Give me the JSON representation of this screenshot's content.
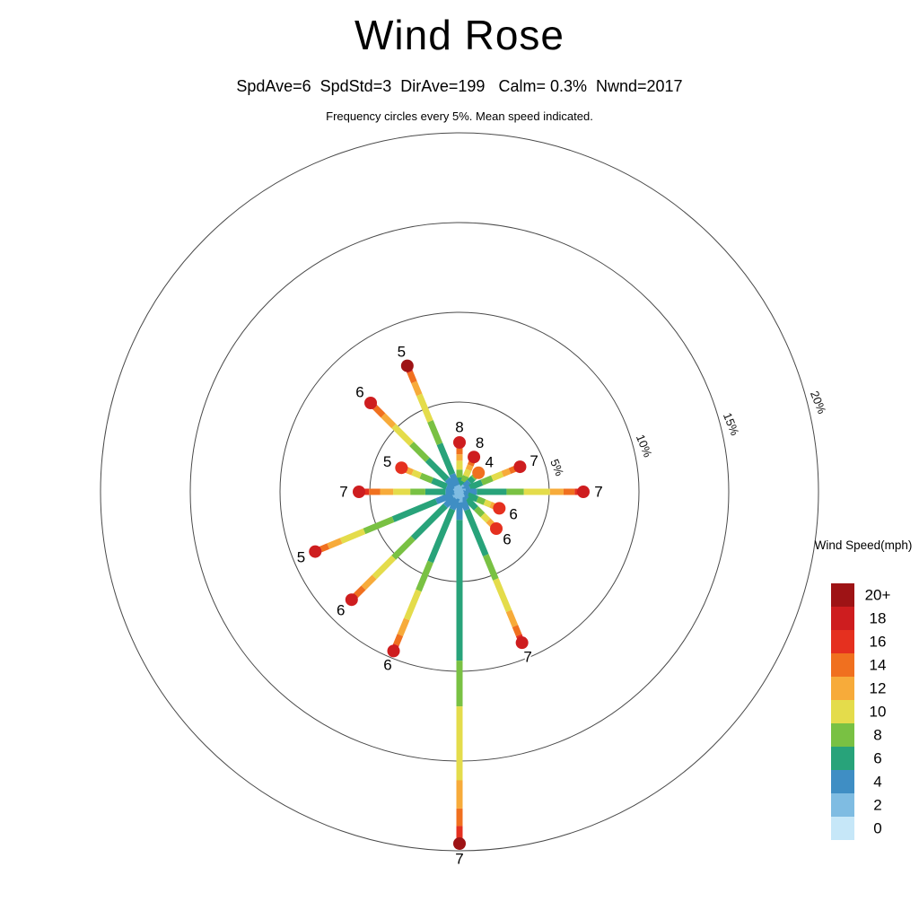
{
  "page": {
    "title": "Wind Rose",
    "stats_line": "SpdAve=6  SpdStd=3  DirAve=199   Calm= 0.3%  Nwnd=2017",
    "subtitle": "Frequency circles every 5%. Mean speed indicated."
  },
  "legend": {
    "title": "Wind Speed(mph)",
    "entries_top_to_bottom": [
      "20+",
      "18",
      "16",
      "14",
      "12",
      "10",
      "8",
      "6",
      "4",
      "2",
      "0"
    ]
  },
  "chart_data": {
    "type": "windrose-polar",
    "title": "Wind Rose",
    "stats": {
      "SpdAve": 6,
      "SpdStd": 3,
      "DirAve": 199,
      "Calm_pct": 0.3,
      "Nwnd": 2017
    },
    "frequency_circle_interval_pct": 5,
    "frequency_circles_pct": [
      5,
      10,
      15,
      20
    ],
    "circle_labels": [
      "5%",
      "10%",
      "15%",
      "20%"
    ],
    "circle_label_angle_deg": 76,
    "speed_bins_mph": [
      "0",
      "2",
      "4",
      "6",
      "8",
      "10",
      "12",
      "14",
      "16",
      "18",
      "20+"
    ],
    "speed_colors": [
      "#c6e7f8",
      "#7fbce2",
      "#3f8ec4",
      "#28a37a",
      "#79c143",
      "#e4dc4b",
      "#f7ab3a",
      "#f0701f",
      "#e5301f",
      "#ce1d1f",
      "#9e1315"
    ],
    "directions": [
      {
        "dir": "N",
        "angle_deg": 0,
        "frequency_pct": 2.75,
        "mean_speed": 8,
        "tip_color": 9,
        "segments": [
          [
            1,
            0.05
          ],
          [
            2,
            0.1
          ],
          [
            3,
            0.14
          ],
          [
            4,
            0.16
          ],
          [
            5,
            0.18
          ],
          [
            6,
            0.13
          ],
          [
            7,
            0.12
          ],
          [
            8,
            0.12
          ]
        ]
      },
      {
        "dir": "NNE",
        "angle_deg": 22.5,
        "frequency_pct": 2.1,
        "mean_speed": 8,
        "tip_color": 9,
        "segments": [
          [
            1,
            0.05
          ],
          [
            2,
            0.1
          ],
          [
            3,
            0.14
          ],
          [
            4,
            0.16
          ],
          [
            5,
            0.18
          ],
          [
            6,
            0.13
          ],
          [
            7,
            0.12
          ],
          [
            8,
            0.12
          ]
        ]
      },
      {
        "dir": "NE",
        "angle_deg": 45,
        "frequency_pct": 1.5,
        "mean_speed": 4,
        "tip_color": 7,
        "segments": [
          [
            0,
            0.1
          ],
          [
            1,
            0.18
          ],
          [
            2,
            0.24
          ],
          [
            3,
            0.2
          ],
          [
            4,
            0.12
          ],
          [
            5,
            0.08
          ],
          [
            6,
            0.08
          ]
        ]
      },
      {
        "dir": "ENE",
        "angle_deg": 67.5,
        "frequency_pct": 3.65,
        "mean_speed": 7,
        "tip_color": 9,
        "segments": [
          [
            1,
            0.06
          ],
          [
            2,
            0.11
          ],
          [
            3,
            0.2
          ],
          [
            4,
            0.17
          ],
          [
            5,
            0.17
          ],
          [
            6,
            0.12
          ],
          [
            7,
            0.1
          ],
          [
            8,
            0.07
          ]
        ]
      },
      {
        "dir": "E",
        "angle_deg": 90,
        "frequency_pct": 6.9,
        "mean_speed": 7,
        "tip_color": 9,
        "segments": [
          [
            1,
            0.05
          ],
          [
            2,
            0.09
          ],
          [
            3,
            0.24
          ],
          [
            4,
            0.14
          ],
          [
            5,
            0.21
          ],
          [
            6,
            0.11
          ],
          [
            7,
            0.09
          ],
          [
            8,
            0.07
          ]
        ]
      },
      {
        "dir": "ESE",
        "angle_deg": 112.5,
        "frequency_pct": 2.4,
        "mean_speed": 6,
        "tip_color": 8,
        "segments": [
          [
            1,
            0.07
          ],
          [
            2,
            0.14
          ],
          [
            3,
            0.24
          ],
          [
            4,
            0.18
          ],
          [
            5,
            0.15
          ],
          [
            6,
            0.11
          ],
          [
            7,
            0.11
          ]
        ]
      },
      {
        "dir": "SE",
        "angle_deg": 135,
        "frequency_pct": 2.9,
        "mean_speed": 6,
        "tip_color": 8,
        "segments": [
          [
            1,
            0.07
          ],
          [
            2,
            0.13
          ],
          [
            3,
            0.25
          ],
          [
            4,
            0.18
          ],
          [
            5,
            0.15
          ],
          [
            6,
            0.11
          ],
          [
            7,
            0.11
          ]
        ]
      },
      {
        "dir": "SSE",
        "angle_deg": 157.5,
        "frequency_pct": 9.1,
        "mean_speed": 7,
        "tip_color": 9,
        "segments": [
          [
            1,
            0.04
          ],
          [
            2,
            0.08
          ],
          [
            3,
            0.3
          ],
          [
            4,
            0.16
          ],
          [
            5,
            0.21
          ],
          [
            6,
            0.1
          ],
          [
            7,
            0.06
          ],
          [
            8,
            0.05
          ]
        ]
      },
      {
        "dir": "S",
        "angle_deg": 180,
        "frequency_pct": 19.6,
        "mean_speed": 7,
        "tip_color": 10,
        "segments": [
          [
            1,
            0.03
          ],
          [
            2,
            0.05
          ],
          [
            3,
            0.4
          ],
          [
            4,
            0.13
          ],
          [
            5,
            0.21
          ],
          [
            6,
            0.08
          ],
          [
            7,
            0.05
          ],
          [
            8,
            0.05
          ]
        ]
      },
      {
        "dir": "SSW",
        "angle_deg": 202.5,
        "frequency_pct": 9.6,
        "mean_speed": 6,
        "tip_color": 9,
        "segments": [
          [
            1,
            0.04
          ],
          [
            2,
            0.07
          ],
          [
            3,
            0.33
          ],
          [
            4,
            0.18
          ],
          [
            5,
            0.18
          ],
          [
            6,
            0.1
          ],
          [
            7,
            0.06
          ],
          [
            8,
            0.04
          ]
        ]
      },
      {
        "dir": "SW",
        "angle_deg": 225,
        "frequency_pct": 8.5,
        "mean_speed": 6,
        "tip_color": 9,
        "segments": [
          [
            1,
            0.05
          ],
          [
            2,
            0.08
          ],
          [
            3,
            0.3
          ],
          [
            4,
            0.18
          ],
          [
            5,
            0.18
          ],
          [
            6,
            0.1
          ],
          [
            7,
            0.07
          ],
          [
            8,
            0.04
          ]
        ]
      },
      {
        "dir": "WSW",
        "angle_deg": 247.5,
        "frequency_pct": 8.7,
        "mean_speed": 5,
        "tip_color": 9,
        "segments": [
          [
            1,
            0.05
          ],
          [
            2,
            0.11
          ],
          [
            3,
            0.3
          ],
          [
            4,
            0.2
          ],
          [
            5,
            0.16
          ],
          [
            6,
            0.09
          ],
          [
            7,
            0.05
          ],
          [
            8,
            0.04
          ]
        ]
      },
      {
        "dir": "W",
        "angle_deg": 270,
        "frequency_pct": 5.6,
        "mean_speed": 7,
        "tip_color": 9,
        "segments": [
          [
            1,
            0.05
          ],
          [
            2,
            0.09
          ],
          [
            3,
            0.2
          ],
          [
            4,
            0.15
          ],
          [
            5,
            0.17
          ],
          [
            6,
            0.13
          ],
          [
            7,
            0.11
          ],
          [
            8,
            0.1
          ]
        ]
      },
      {
        "dir": "WNW",
        "angle_deg": 292.5,
        "frequency_pct": 3.5,
        "mean_speed": 5,
        "tip_color": 8,
        "segments": [
          [
            1,
            0.08
          ],
          [
            2,
            0.14
          ],
          [
            3,
            0.25
          ],
          [
            4,
            0.2
          ],
          [
            5,
            0.14
          ],
          [
            6,
            0.09
          ],
          [
            7,
            0.1
          ]
        ]
      },
      {
        "dir": "NW",
        "angle_deg": 315,
        "frequency_pct": 7.0,
        "mean_speed": 6,
        "tip_color": 9,
        "segments": [
          [
            1,
            0.05
          ],
          [
            2,
            0.09
          ],
          [
            3,
            0.22
          ],
          [
            4,
            0.18
          ],
          [
            5,
            0.2
          ],
          [
            6,
            0.12
          ],
          [
            7,
            0.09
          ],
          [
            8,
            0.05
          ]
        ]
      },
      {
        "dir": "NNW",
        "angle_deg": 337.5,
        "frequency_pct": 7.6,
        "mean_speed": 5,
        "tip_color": 10,
        "segments": [
          [
            1,
            0.05
          ],
          [
            2,
            0.09
          ],
          [
            3,
            0.24
          ],
          [
            4,
            0.18
          ],
          [
            5,
            0.21
          ],
          [
            6,
            0.1
          ],
          [
            7,
            0.08
          ],
          [
            8,
            0.05
          ]
        ]
      }
    ]
  }
}
